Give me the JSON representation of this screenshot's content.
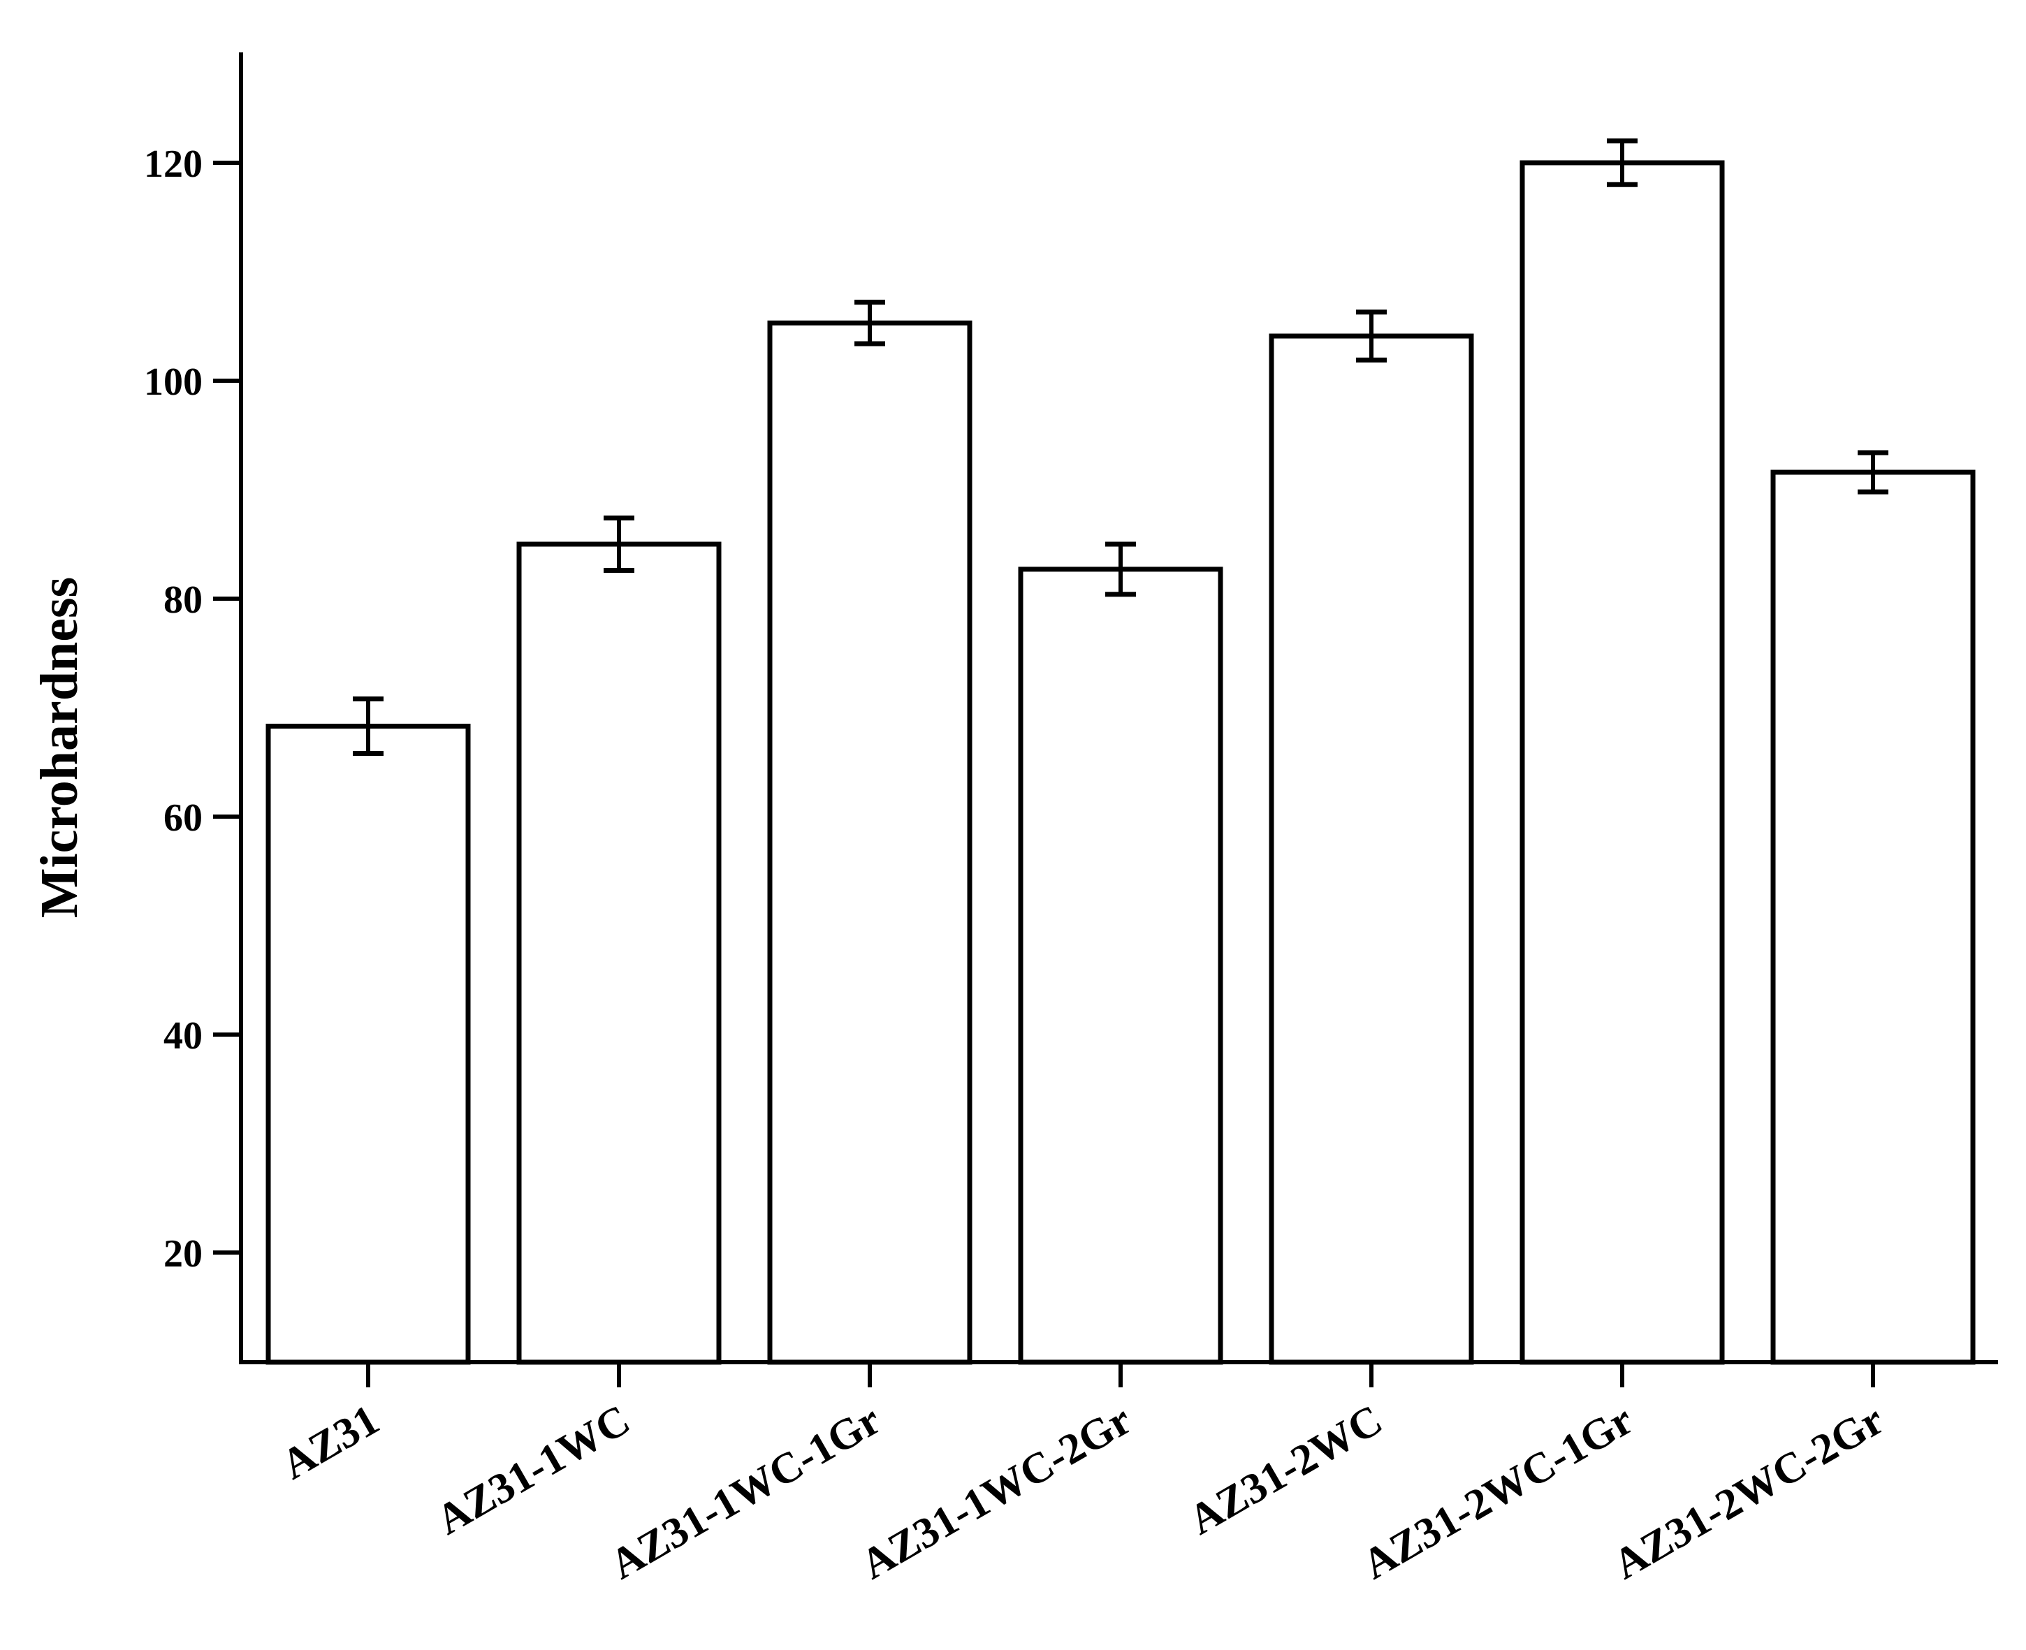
{
  "chart_data": {
    "type": "bar",
    "title": "",
    "xlabel": "",
    "ylabel": "Microhardness",
    "categories": [
      "AZ31",
      "AZ31-1WC",
      "AZ31-1WC-1Gr",
      "AZ31-1WC-2Gr",
      "AZ31-2WC",
      "AZ31-2WC-1Gr",
      "AZ31-2WC-2Gr"
    ],
    "values": [
      68.3,
      85.0,
      105.3,
      82.7,
      104.1,
      120.0,
      91.6
    ],
    "errors": [
      2.5,
      2.4,
      1.9,
      2.3,
      2.2,
      2.0,
      1.8
    ],
    "ylim": [
      10,
      130
    ],
    "yticks": [
      20,
      40,
      60,
      80,
      100,
      120
    ],
    "ytick_labels": [
      "20",
      "40",
      "60",
      "80",
      "100",
      "120"
    ],
    "grid": false,
    "legend": "none",
    "colors": {
      "bar_fill": "#ffffff",
      "bar_stroke": "#000000",
      "axis": "#000000",
      "error_bar": "#000000"
    }
  }
}
